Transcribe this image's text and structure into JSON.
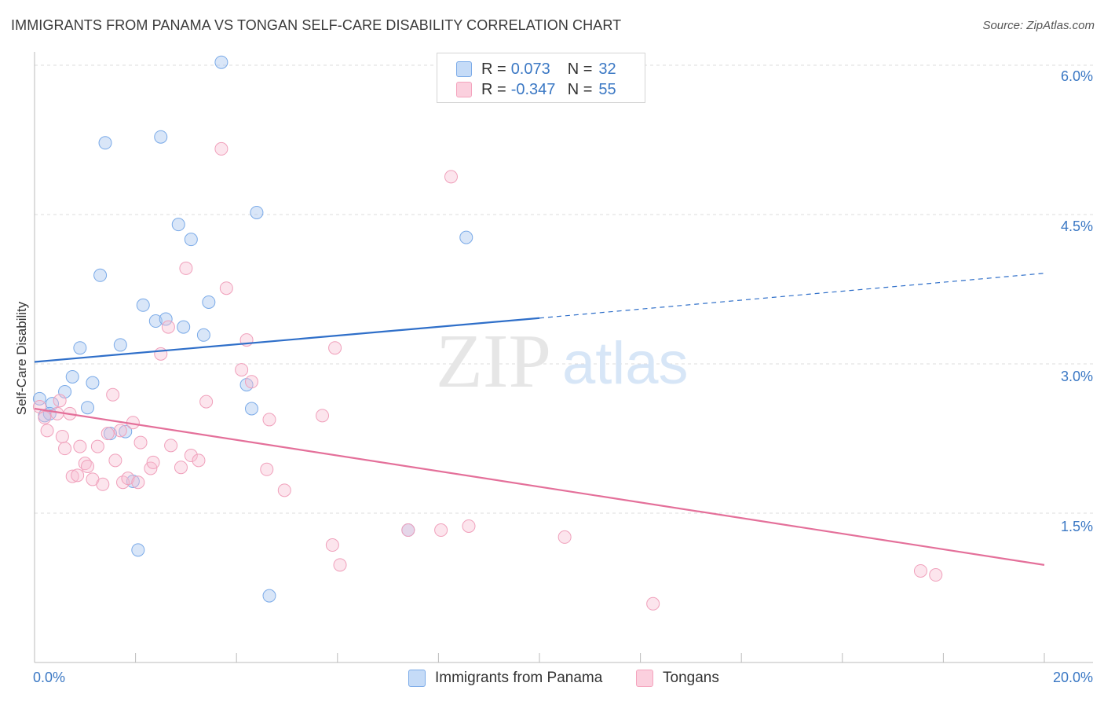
{
  "title": "IMMIGRANTS FROM PANAMA VS TONGAN SELF-CARE DISABILITY CORRELATION CHART",
  "source": "Source: ZipAtlas.com",
  "watermark": {
    "zip": "ZIP",
    "atlas": "atlas"
  },
  "stats_legend": [
    {
      "r_label": "R =",
      "r_value": "0.073",
      "n_label": "N =",
      "n_value": "32"
    },
    {
      "r_label": "R =",
      "r_value": "-0.347",
      "n_label": "N =",
      "n_value": "55"
    }
  ],
  "chart_data": {
    "type": "scatter",
    "title": "IMMIGRANTS FROM PANAMA VS TONGAN SELF-CARE DISABILITY CORRELATION CHART",
    "xlabel": "",
    "ylabel": "Self-Care Disability",
    "xlim": [
      0,
      20
    ],
    "ylim": [
      0,
      6.2
    ],
    "x_tick_labels": {
      "left": "0.0%",
      "right": "20.0%"
    },
    "y_ticks": [
      {
        "value": 1.5,
        "label": "1.5%"
      },
      {
        "value": 3.0,
        "label": "3.0%"
      },
      {
        "value": 4.5,
        "label": "4.5%"
      },
      {
        "value": 6.0,
        "label": "6.0%"
      }
    ],
    "grid": true,
    "legend_position": "bottom-center",
    "colors": {
      "panama": "#7aaae8",
      "tongans": "#f4a3bd",
      "panama_line": "#2f6fc9",
      "tongans_line": "#e4709a"
    },
    "series": [
      {
        "name": "Immigrants from Panama",
        "color": "#7aaae8",
        "points": [
          [
            0.1,
            2.65
          ],
          [
            0.35,
            2.6
          ],
          [
            0.6,
            2.72
          ],
          [
            0.75,
            2.87
          ],
          [
            0.9,
            3.16
          ],
          [
            1.05,
            2.56
          ],
          [
            1.15,
            2.81
          ],
          [
            1.3,
            3.89
          ],
          [
            1.4,
            5.22
          ],
          [
            1.7,
            3.19
          ],
          [
            1.5,
            2.3
          ],
          [
            1.8,
            2.32
          ],
          [
            1.95,
            1.82
          ],
          [
            2.05,
            1.13
          ],
          [
            2.15,
            3.59
          ],
          [
            2.4,
            3.43
          ],
          [
            2.5,
            5.28
          ],
          [
            2.6,
            3.45
          ],
          [
            2.85,
            4.4
          ],
          [
            2.95,
            3.37
          ],
          [
            3.1,
            4.25
          ],
          [
            3.35,
            3.29
          ],
          [
            3.45,
            3.62
          ],
          [
            3.7,
            6.03
          ],
          [
            4.2,
            2.79
          ],
          [
            4.3,
            2.55
          ],
          [
            4.4,
            4.52
          ],
          [
            4.65,
            0.67
          ],
          [
            7.4,
            1.33
          ],
          [
            8.55,
            4.27
          ],
          [
            0.2,
            2.48
          ],
          [
            0.3,
            2.5
          ]
        ],
        "trend": {
          "x0": 0,
          "y0": 3.02,
          "x1": 10,
          "y1": 3.46,
          "dashed_to_x": 20,
          "dashed_to_y": 3.91
        }
      },
      {
        "name": "Tongans",
        "color": "#f4a3bd",
        "points": [
          [
            0.1,
            2.57
          ],
          [
            0.2,
            2.46
          ],
          [
            0.25,
            2.33
          ],
          [
            0.45,
            2.5
          ],
          [
            0.5,
            2.63
          ],
          [
            0.55,
            2.27
          ],
          [
            0.6,
            2.15
          ],
          [
            0.7,
            2.5
          ],
          [
            0.75,
            1.87
          ],
          [
            0.85,
            1.88
          ],
          [
            0.9,
            2.17
          ],
          [
            1.0,
            2.0
          ],
          [
            1.05,
            1.97
          ],
          [
            1.15,
            1.84
          ],
          [
            1.25,
            2.17
          ],
          [
            1.35,
            1.79
          ],
          [
            1.45,
            2.3
          ],
          [
            1.55,
            2.69
          ],
          [
            1.6,
            2.03
          ],
          [
            1.7,
            2.33
          ],
          [
            1.75,
            1.81
          ],
          [
            1.85,
            1.85
          ],
          [
            1.95,
            2.41
          ],
          [
            2.05,
            1.81
          ],
          [
            2.1,
            2.21
          ],
          [
            2.3,
            1.95
          ],
          [
            2.35,
            2.01
          ],
          [
            2.5,
            3.1
          ],
          [
            2.65,
            3.37
          ],
          [
            2.7,
            2.18
          ],
          [
            2.9,
            1.96
          ],
          [
            3.0,
            3.96
          ],
          [
            3.1,
            2.08
          ],
          [
            3.25,
            2.03
          ],
          [
            3.4,
            2.62
          ],
          [
            3.7,
            5.16
          ],
          [
            3.8,
            3.76
          ],
          [
            4.1,
            2.94
          ],
          [
            4.2,
            3.24
          ],
          [
            4.3,
            2.82
          ],
          [
            4.6,
            1.94
          ],
          [
            4.65,
            2.44
          ],
          [
            4.95,
            1.73
          ],
          [
            5.7,
            2.48
          ],
          [
            5.9,
            1.18
          ],
          [
            6.05,
            0.98
          ],
          [
            5.95,
            3.16
          ],
          [
            7.4,
            1.33
          ],
          [
            8.05,
            1.33
          ],
          [
            8.6,
            1.37
          ],
          [
            10.5,
            1.26
          ],
          [
            12.25,
            0.59
          ],
          [
            17.55,
            0.92
          ],
          [
            17.85,
            0.88
          ],
          [
            8.25,
            4.88
          ]
        ],
        "trend": {
          "x0": 0,
          "y0": 2.55,
          "x1": 20,
          "y1": 0.98
        }
      }
    ]
  }
}
